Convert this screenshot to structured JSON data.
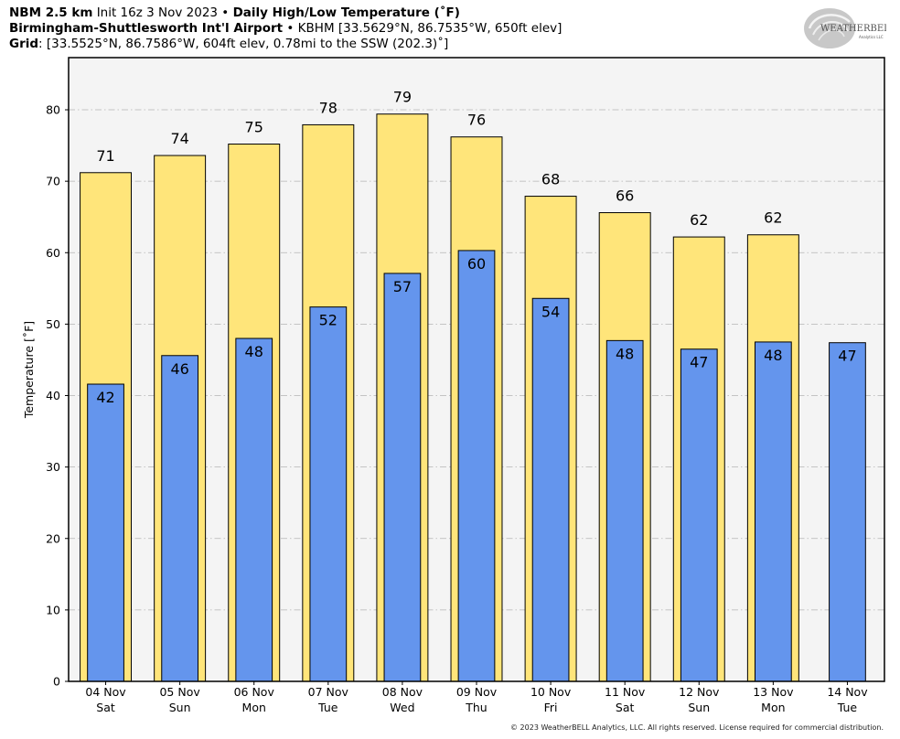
{
  "header": {
    "line1": {
      "model": "NBM 2.5 km",
      "init": "Init 16z 3 Nov 2023",
      "sep": "•",
      "product": "Daily High/Low Temperature (˚F)"
    },
    "line2": {
      "station": "Birmingham-Shuttlesworth Int'l Airport",
      "sep": "•",
      "details": "KBHM [33.5629°N, 86.7535°W, 650ft elev]"
    },
    "line3": {
      "label": "Grid",
      "details": ": [33.5525°N, 86.7586°W, 604ft elev, 0.78mi to the SSW (202.3)˚]"
    }
  },
  "logo": {
    "text_main": "WEATHERBELL",
    "text_sub": "Analytics LLC"
  },
  "copyright": "© 2023 WeatherBELL Analytics, LLC. All rights reserved. License required for commercial distribution.",
  "colors": {
    "high": "#ffe57a",
    "low": "#6495ed",
    "plot_bg": "#f4f4f4",
    "grid": "#b3b3b3"
  },
  "chart_data": {
    "type": "bar",
    "ylabel": "Temperature [˚F]",
    "ylim": [
      0,
      87.3
    ],
    "yticks": [
      0,
      10,
      20,
      30,
      40,
      50,
      60,
      70,
      80
    ],
    "grid": true,
    "categories": [
      "04 Nov",
      "05 Nov",
      "06 Nov",
      "07 Nov",
      "08 Nov",
      "09 Nov",
      "10 Nov",
      "11 Nov",
      "12 Nov",
      "13 Nov",
      "14 Nov"
    ],
    "weekdays": [
      "Sat",
      "Sun",
      "Mon",
      "Tue",
      "Wed",
      "Thu",
      "Fri",
      "Sat",
      "Sun",
      "Mon",
      "Tue"
    ],
    "series": [
      {
        "key": "high",
        "values": [
          71.2,
          73.6,
          75.2,
          77.9,
          79.4,
          76.2,
          67.9,
          65.6,
          62.2,
          62.5,
          null
        ],
        "labels": [
          "71",
          "74",
          "75",
          "78",
          "79",
          "76",
          "68",
          "66",
          "62",
          "62",
          ""
        ]
      },
      {
        "key": "low",
        "values": [
          41.6,
          45.6,
          48.0,
          52.4,
          57.1,
          60.3,
          53.6,
          47.7,
          46.5,
          47.5,
          47.4
        ],
        "labels": [
          "42",
          "46",
          "48",
          "52",
          "57",
          "60",
          "54",
          "48",
          "47",
          "48",
          "47"
        ]
      }
    ]
  }
}
